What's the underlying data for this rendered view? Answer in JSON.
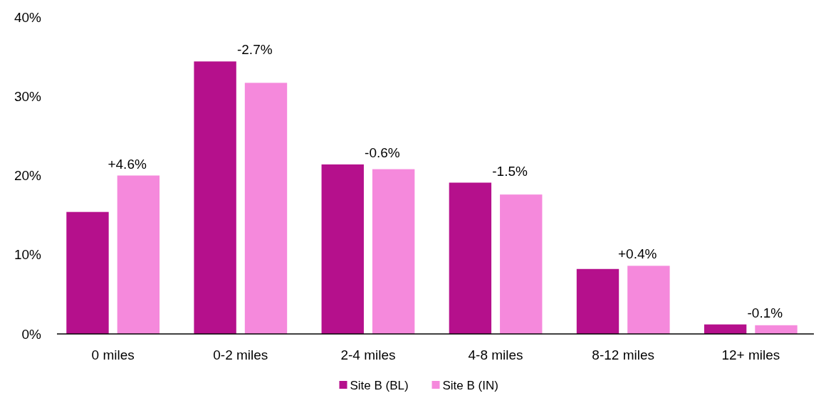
{
  "chart_data": {
    "type": "bar",
    "categories": [
      "0 miles",
      "0-2 miles",
      "2-4 miles",
      "4-8 miles",
      "8-12 miles",
      "12+ miles"
    ],
    "series": [
      {
        "name": "Site B (BL)",
        "color": "#b5108c",
        "values": [
          15.4,
          34.4,
          21.4,
          19.1,
          8.2,
          1.2
        ]
      },
      {
        "name": "Site B (IN)",
        "color": "#f589dc",
        "values": [
          20.0,
          31.7,
          20.8,
          17.6,
          8.6,
          1.1
        ]
      }
    ],
    "ylim": [
      0,
      40
    ],
    "yticks": [
      {
        "value": 0,
        "label": "0%"
      },
      {
        "value": 10,
        "label": "10%"
      },
      {
        "value": 20,
        "label": "20%"
      },
      {
        "value": 30,
        "label": "30%"
      },
      {
        "value": 40,
        "label": "40%"
      }
    ],
    "annotations": [
      "+4.6%",
      "-2.7%",
      "-0.6%",
      "-1.5%",
      "+0.4%",
      "-0.1%"
    ],
    "grid": false,
    "legend": "bottom"
  }
}
